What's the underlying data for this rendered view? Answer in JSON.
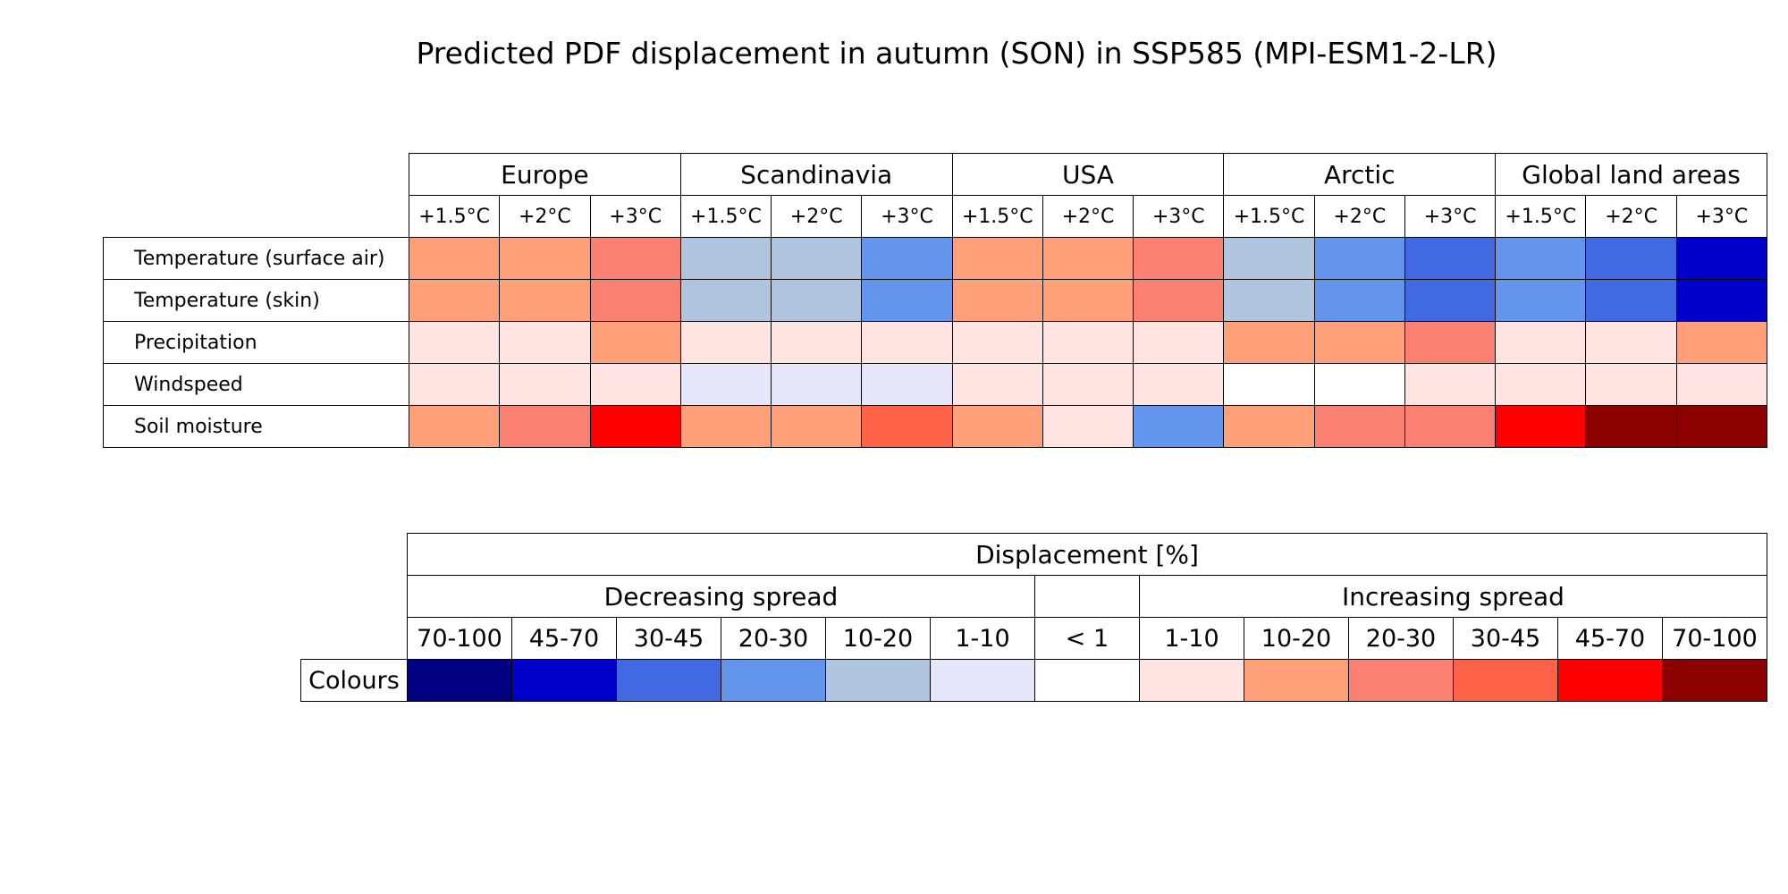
{
  "title": "Predicted PDF displacement in autumn (SON) in SSP585 (MPI-ESM1-2-LR)",
  "chart_data": {
    "type": "table",
    "title": "Predicted PDF displacement in autumn (SON) in SSP585 (MPI-ESM1-2-LR)",
    "regions": [
      "Europe",
      "Scandinavia",
      "USA",
      "Arctic",
      "Global land areas"
    ],
    "levels": [
      "+1.5°C",
      "+2°C",
      "+3°C"
    ],
    "rows": [
      {
        "name": "Temperature (surface air)",
        "values": [
          "inc-10-20",
          "inc-10-20",
          "inc-20-30",
          "dec-10-20",
          "dec-10-20",
          "dec-20-30",
          "inc-10-20",
          "inc-10-20",
          "inc-20-30",
          "dec-10-20",
          "dec-20-30",
          "dec-30-45",
          "dec-20-30",
          "dec-30-45",
          "dec-45-70"
        ]
      },
      {
        "name": "Temperature (skin)",
        "values": [
          "inc-10-20",
          "inc-10-20",
          "inc-20-30",
          "dec-10-20",
          "dec-10-20",
          "dec-20-30",
          "inc-10-20",
          "inc-10-20",
          "inc-20-30",
          "dec-10-20",
          "dec-20-30",
          "dec-30-45",
          "dec-20-30",
          "dec-30-45",
          "dec-45-70"
        ]
      },
      {
        "name": "Precipitation",
        "values": [
          "inc-1-10",
          "inc-1-10",
          "inc-10-20",
          "inc-1-10",
          "inc-1-10",
          "inc-1-10",
          "inc-1-10",
          "inc-1-10",
          "inc-1-10",
          "inc-10-20",
          "inc-10-20",
          "inc-20-30",
          "inc-1-10",
          "inc-1-10",
          "inc-10-20"
        ]
      },
      {
        "name": "Windspeed",
        "values": [
          "inc-1-10",
          "inc-1-10",
          "inc-1-10",
          "dec-1-10",
          "dec-1-10",
          "dec-1-10",
          "inc-1-10",
          "inc-1-10",
          "inc-1-10",
          "lt-1",
          "lt-1",
          "inc-1-10",
          "inc-1-10",
          "inc-1-10",
          "inc-1-10"
        ]
      },
      {
        "name": "Soil moisture",
        "values": [
          "inc-10-20",
          "inc-20-30",
          "inc-45-70",
          "inc-10-20",
          "inc-10-20",
          "inc-30-45",
          "inc-10-20",
          "inc-1-10",
          "dec-20-30",
          "inc-10-20",
          "inc-20-30",
          "inc-20-30",
          "inc-45-70",
          "inc-70-100",
          "inc-70-100"
        ]
      }
    ],
    "legend": {
      "title": "Displacement [%]",
      "decreasing_label": "Decreasing spread",
      "increasing_label": "Increasing spread",
      "row_label": "Colours",
      "bins": [
        {
          "key": "dec-70-100",
          "label": "70-100",
          "color": "#000080"
        },
        {
          "key": "dec-45-70",
          "label": "45-70",
          "color": "#0000cd"
        },
        {
          "key": "dec-30-45",
          "label": "30-45",
          "color": "#4169e1"
        },
        {
          "key": "dec-20-30",
          "label": "20-30",
          "color": "#6495ed"
        },
        {
          "key": "dec-10-20",
          "label": "10-20",
          "color": "#b0c4de"
        },
        {
          "key": "dec-1-10",
          "label": "1-10",
          "color": "#e6e6fa"
        },
        {
          "key": "lt-1",
          "label": "< 1",
          "color": "#ffffff"
        },
        {
          "key": "inc-1-10",
          "label": "1-10",
          "color": "#ffe4e1"
        },
        {
          "key": "inc-10-20",
          "label": "10-20",
          "color": "#ffa07a"
        },
        {
          "key": "inc-20-30",
          "label": "20-30",
          "color": "#fa8072"
        },
        {
          "key": "inc-30-45",
          "label": "30-45",
          "color": "#ff6347"
        },
        {
          "key": "inc-45-70",
          "label": "45-70",
          "color": "#ff0000"
        },
        {
          "key": "inc-70-100",
          "label": "70-100",
          "color": "#8b0000"
        }
      ]
    }
  }
}
